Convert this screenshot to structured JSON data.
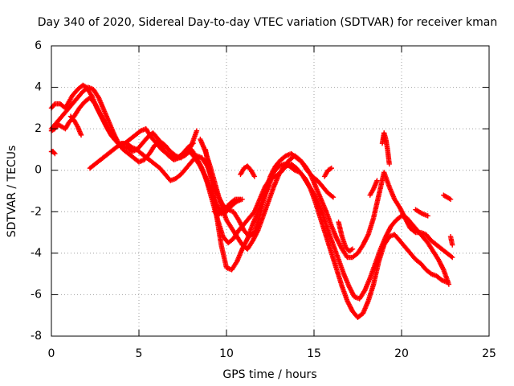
{
  "chart_data": {
    "type": "scatter",
    "title": "Day 340 of 2020, Sidereal Day-to-day VTEC variation (SDTVAR) for receiver kman",
    "xlabel": "GPS time / hours",
    "ylabel": "SDTVAR / TECUs",
    "xlim": [
      0,
      25
    ],
    "ylim": [
      -8,
      6
    ],
    "xticks": [
      "0",
      "5",
      "10",
      "15",
      "20",
      "25"
    ],
    "yticks": [
      "6",
      "4",
      "2",
      "0",
      "-2",
      "-4",
      "-6",
      "-8"
    ],
    "grid": true,
    "legend": "none",
    "marker": "plus",
    "color": "#ff0000",
    "series": [
      {
        "x": [
          0.0,
          0.2,
          0.5,
          0.8,
          1.0,
          1.2,
          1.5,
          1.8,
          2.0,
          2.3,
          2.6,
          2.9,
          3.2,
          3.5,
          3.8,
          4.1,
          4.4,
          4.7,
          5.0,
          5.3,
          5.6,
          5.9,
          6.2,
          6.5,
          6.8,
          7.1,
          7.4,
          7.7,
          8.0,
          8.3
        ],
        "y": [
          3.0,
          3.2,
          3.2,
          3.0,
          3.3,
          3.6,
          3.9,
          4.1,
          4.0,
          3.6,
          3.0,
          2.5,
          2.0,
          1.6,
          1.3,
          1.0,
          0.8,
          0.6,
          0.4,
          0.5,
          0.8,
          1.2,
          1.4,
          1.2,
          0.9,
          0.7,
          0.6,
          0.8,
          1.2,
          1.9
        ]
      },
      {
        "x": [
          0.0,
          0.3,
          0.6,
          0.9,
          1.2,
          1.5,
          1.8,
          2.1,
          2.4,
          2.7,
          3.0,
          3.3,
          3.6,
          3.9,
          4.2,
          4.5,
          4.8,
          5.1,
          5.4,
          5.7,
          6.0,
          6.3,
          6.6,
          6.9,
          7.2,
          7.5,
          7.8,
          8.1
        ],
        "y": [
          2.0,
          2.3,
          2.6,
          2.9,
          3.2,
          3.5,
          3.8,
          4.0,
          3.9,
          3.5,
          2.9,
          2.3,
          1.7,
          1.2,
          1.3,
          1.5,
          1.7,
          1.9,
          2.0,
          1.6,
          1.3,
          1.0,
          0.8,
          0.7,
          0.6,
          0.8,
          1.1,
          1.3
        ]
      },
      {
        "x": [
          0.0,
          0.2,
          0.4,
          0.6,
          0.8,
          1.0,
          1.3,
          1.6,
          1.9,
          2.2,
          2.5,
          2.8,
          3.1,
          3.4,
          3.7,
          4.0,
          4.3,
          4.6,
          4.9,
          5.2,
          5.5,
          5.8,
          6.1,
          6.4,
          6.7,
          7.0,
          7.3,
          7.6,
          7.9,
          8.2,
          8.5,
          8.8,
          9.1,
          9.4,
          9.7,
          10.0,
          10.3,
          10.6,
          10.9
        ],
        "y": [
          1.9,
          2.0,
          2.2,
          2.1,
          2.0,
          2.3,
          2.6,
          3.0,
          3.3,
          3.5,
          3.2,
          2.7,
          2.2,
          1.7,
          1.4,
          1.2,
          1.1,
          0.9,
          1.0,
          1.3,
          1.6,
          1.8,
          1.5,
          1.0,
          0.7,
          0.5,
          0.6,
          0.7,
          0.9,
          0.6,
          0.2,
          -0.3,
          -1.0,
          -1.6,
          -2.1,
          -2.0,
          -1.7,
          -1.5,
          -1.4
        ]
      },
      {
        "x": [
          0.0,
          0.1,
          0.2
        ],
        "y": [
          0.9,
          0.9,
          0.8
        ]
      },
      {
        "x": [
          1.1,
          1.3,
          1.5,
          1.7
        ],
        "y": [
          2.6,
          2.4,
          2.1,
          1.7
        ]
      },
      {
        "x": [
          2.2,
          2.5,
          2.8,
          3.1,
          3.4,
          3.7,
          4.0,
          4.3,
          4.6,
          4.9
        ],
        "y": [
          0.1,
          0.3,
          0.5,
          0.7,
          0.9,
          1.1,
          1.3,
          1.3,
          1.1,
          1.0
        ]
      },
      {
        "x": [
          5.0,
          5.3,
          5.6,
          5.9,
          6.2,
          6.5,
          6.8,
          7.1,
          7.4,
          7.7,
          8.0,
          8.3,
          8.6,
          8.9,
          9.2,
          9.5,
          9.8,
          10.1,
          10.4,
          10.7,
          11.0,
          11.3,
          11.6,
          11.9,
          12.2,
          12.5,
          12.8,
          13.1,
          13.4,
          13.7,
          14.0,
          14.3,
          14.6,
          14.9,
          15.2,
          15.5,
          15.8,
          16.1
        ],
        "y": [
          0.9,
          0.7,
          0.5,
          0.3,
          0.1,
          -0.2,
          -0.5,
          -0.4,
          -0.2,
          0.1,
          0.4,
          0.7,
          0.6,
          0.2,
          -0.5,
          -1.2,
          -1.7,
          -1.9,
          -2.0,
          -2.4,
          -2.9,
          -3.2,
          -3.0,
          -2.2,
          -1.2,
          -0.3,
          0.2,
          0.5,
          0.7,
          0.8,
          0.6,
          0.4,
          0.0,
          -0.3,
          -0.5,
          -0.8,
          -1.1,
          -1.3
        ]
      },
      {
        "x": [
          8.0,
          8.3,
          8.6,
          8.9,
          9.2,
          9.5,
          9.8,
          10.1,
          10.4,
          10.7,
          11.0,
          11.3,
          11.6,
          11.9,
          12.2,
          12.5,
          12.8,
          13.1,
          13.4,
          13.7,
          14.0,
          14.3,
          14.6,
          14.9,
          15.2,
          15.5,
          15.8,
          16.1,
          16.4,
          16.7,
          17.0,
          17.3,
          17.6,
          17.9,
          18.2,
          18.5,
          18.8,
          19.1,
          19.4,
          19.7,
          20.0,
          20.3,
          20.6,
          20.9,
          21.2,
          21.5,
          21.8,
          22.1,
          22.4,
          22.7
        ],
        "y": [
          1.0,
          0.6,
          0.1,
          -0.6,
          -1.5,
          -2.4,
          -3.2,
          -3.5,
          -3.3,
          -2.9,
          -2.6,
          -2.3,
          -2.0,
          -1.4,
          -0.8,
          -0.4,
          -0.3,
          -0.1,
          0.2,
          0.3,
          0.1,
          -0.2,
          -0.6,
          -1.0,
          -1.5,
          -2.1,
          -2.9,
          -3.6,
          -4.3,
          -5.0,
          -5.6,
          -6.1,
          -6.2,
          -5.8,
          -5.2,
          -4.5,
          -3.8,
          -3.2,
          -2.7,
          -2.4,
          -2.2,
          -2.3,
          -2.6,
          -2.9,
          -3.2,
          -3.5,
          -3.9,
          -4.3,
          -4.8,
          -5.5
        ]
      },
      {
        "x": [
          8.5,
          8.8,
          9.1,
          9.4,
          9.7,
          10.0,
          10.3,
          10.6,
          10.9,
          11.2,
          11.5,
          11.8,
          12.1,
          12.4,
          12.7,
          13.0,
          13.3,
          13.6,
          13.9,
          14.2,
          14.5,
          14.8,
          15.1,
          15.4,
          15.7,
          16.0,
          16.3,
          16.6,
          16.9,
          17.2,
          17.5,
          17.8,
          18.1,
          18.4,
          18.7,
          19.0,
          19.3,
          19.6,
          19.9,
          20.2,
          20.5,
          20.8,
          21.1,
          21.4,
          21.7,
          22.0,
          22.3,
          22.6,
          22.9
        ],
        "y": [
          1.5,
          0.9,
          0.1,
          -0.8,
          -1.7,
          -2.4,
          -2.8,
          -3.2,
          -3.6,
          -3.8,
          -3.4,
          -2.9,
          -2.2,
          -1.5,
          -0.8,
          -0.2,
          0.2,
          0.5,
          0.7,
          0.5,
          0.2,
          -0.2,
          -0.8,
          -1.4,
          -2.0,
          -2.7,
          -3.3,
          -3.8,
          -4.2,
          -4.2,
          -4.0,
          -3.6,
          -3.1,
          -2.3,
          -1.2,
          -0.1,
          -0.8,
          -1.4,
          -1.8,
          -2.3,
          -2.8,
          -3.0,
          -3.0,
          -3.1,
          -3.4,
          -3.6,
          -3.8,
          -4.0,
          -4.2
        ]
      },
      {
        "x": [
          8.8,
          9.1,
          9.4,
          9.7,
          10.0,
          10.3,
          10.6,
          10.9,
          11.2,
          11.5,
          11.8,
          12.1,
          12.4,
          12.7,
          13.0,
          13.3,
          13.6,
          13.9,
          14.2,
          14.5,
          14.8,
          15.1,
          15.4,
          15.7,
          16.0,
          16.3,
          16.6,
          16.9,
          17.2,
          17.5,
          17.8,
          18.1,
          18.4,
          18.7,
          19.0,
          19.3,
          19.6,
          19.9,
          20.2,
          20.5,
          20.8,
          21.1,
          21.4,
          21.7,
          22.0,
          22.3,
          22.6
        ],
        "y": [
          1.0,
          -0.3,
          -2.0,
          -3.6,
          -4.7,
          -4.8,
          -4.4,
          -3.8,
          -3.3,
          -2.6,
          -2.0,
          -1.4,
          -0.8,
          -0.1,
          0.2,
          0.3,
          0.2,
          0.0,
          -0.1,
          -0.4,
          -0.9,
          -1.6,
          -2.4,
          -3.2,
          -4.0,
          -4.8,
          -5.6,
          -6.3,
          -6.8,
          -7.1,
          -6.9,
          -6.3,
          -5.5,
          -4.4,
          -3.6,
          -3.2,
          -3.1,
          -3.4,
          -3.7,
          -4.0,
          -4.3,
          -4.5,
          -4.8,
          -5.0,
          -5.1,
          -5.3,
          -5.4
        ]
      },
      {
        "x": [
          9.3,
          9.6,
          9.9,
          10.2,
          10.5,
          10.8
        ],
        "y": [
          -2.0,
          -2.1,
          -1.9,
          -1.6,
          -1.4,
          -1.4
        ]
      },
      {
        "x": [
          10.8,
          11.0,
          11.2,
          11.4,
          11.6
        ],
        "y": [
          -0.2,
          0.1,
          0.2,
          0.0,
          -0.3
        ]
      },
      {
        "x": [
          15.6,
          15.8,
          16.0
        ],
        "y": [
          -0.3,
          0.0,
          0.1
        ]
      },
      {
        "x": [
          16.4,
          16.6,
          16.8,
          17.0,
          17.2
        ],
        "y": [
          -2.5,
          -3.2,
          -3.7,
          -3.9,
          -3.8
        ]
      },
      {
        "x": [
          18.9,
          19.0,
          19.1,
          19.2,
          19.3
        ],
        "y": [
          1.3,
          1.8,
          1.5,
          1.0,
          0.3
        ]
      },
      {
        "x": [
          18.2,
          18.4,
          18.6
        ],
        "y": [
          -1.2,
          -0.9,
          -0.5
        ]
      },
      {
        "x": [
          20.8,
          21.0,
          21.2,
          21.5
        ],
        "y": [
          -1.9,
          -2.0,
          -2.1,
          -2.2
        ]
      },
      {
        "x": [
          22.4,
          22.6,
          22.8
        ],
        "y": [
          -1.2,
          -1.3,
          -1.4
        ]
      },
      {
        "x": [
          22.8,
          22.9
        ],
        "y": [
          -3.2,
          -3.6
        ]
      }
    ]
  }
}
